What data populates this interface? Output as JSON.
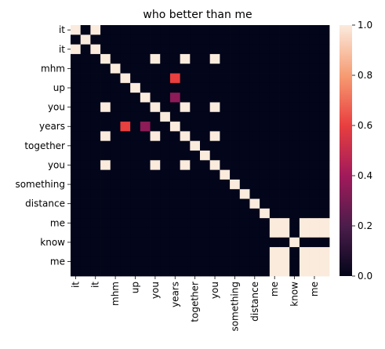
{
  "chart_data": {
    "type": "heatmap",
    "title": "who better than me",
    "xlabel": "",
    "ylabel": "",
    "rows": [
      "it",
      "",
      "it",
      "",
      "mhm",
      "",
      "up",
      "",
      "you",
      "",
      "years",
      "",
      "together",
      "",
      "you",
      "",
      "something",
      "",
      "distance",
      "",
      "me",
      "",
      "know",
      "",
      "me",
      ""
    ],
    "cols": [
      "it",
      "",
      "it",
      "",
      "mhm",
      "",
      "up",
      "",
      "you",
      "",
      "years",
      "",
      "together",
      "",
      "you",
      "",
      "something",
      "",
      "distance",
      "",
      "me",
      "",
      "know",
      "",
      "me",
      ""
    ],
    "tick_labels": [
      "it",
      "it",
      "mhm",
      "up",
      "you",
      "years",
      "together",
      "you",
      "something",
      "distance",
      "me",
      "know",
      "me"
    ],
    "highlights": [
      {
        "row": 0,
        "col": 0,
        "v": 1.0
      },
      {
        "row": 0,
        "col": 2,
        "v": 1.0
      },
      {
        "row": 1,
        "col": 1,
        "v": 1.0
      },
      {
        "row": 2,
        "col": 0,
        "v": 1.0
      },
      {
        "row": 2,
        "col": 2,
        "v": 1.0
      },
      {
        "row": 3,
        "col": 3,
        "v": 1.0
      },
      {
        "row": 3,
        "col": 8,
        "v": 1.0
      },
      {
        "row": 3,
        "col": 11,
        "v": 1.0
      },
      {
        "row": 3,
        "col": 14,
        "v": 1.0
      },
      {
        "row": 4,
        "col": 4,
        "v": 1.0
      },
      {
        "row": 5,
        "col": 5,
        "v": 1.0
      },
      {
        "row": 5,
        "col": 10,
        "v": 0.6
      },
      {
        "row": 6,
        "col": 6,
        "v": 1.0
      },
      {
        "row": 7,
        "col": 7,
        "v": 1.0
      },
      {
        "row": 7,
        "col": 10,
        "v": 0.35
      },
      {
        "row": 8,
        "col": 3,
        "v": 1.0
      },
      {
        "row": 8,
        "col": 8,
        "v": 1.0
      },
      {
        "row": 8,
        "col": 11,
        "v": 1.0
      },
      {
        "row": 8,
        "col": 14,
        "v": 1.0
      },
      {
        "row": 9,
        "col": 9,
        "v": 1.0
      },
      {
        "row": 10,
        "col": 5,
        "v": 0.6
      },
      {
        "row": 10,
        "col": 7,
        "v": 0.35
      },
      {
        "row": 10,
        "col": 10,
        "v": 1.0
      },
      {
        "row": 11,
        "col": 3,
        "v": 1.0
      },
      {
        "row": 11,
        "col": 8,
        "v": 1.0
      },
      {
        "row": 11,
        "col": 11,
        "v": 1.0
      },
      {
        "row": 11,
        "col": 14,
        "v": 1.0
      },
      {
        "row": 12,
        "col": 12,
        "v": 1.0
      },
      {
        "row": 13,
        "col": 13,
        "v": 1.0
      },
      {
        "row": 14,
        "col": 3,
        "v": 1.0
      },
      {
        "row": 14,
        "col": 8,
        "v": 1.0
      },
      {
        "row": 14,
        "col": 11,
        "v": 1.0
      },
      {
        "row": 14,
        "col": 14,
        "v": 1.0
      },
      {
        "row": 15,
        "col": 15,
        "v": 1.0
      },
      {
        "row": 16,
        "col": 16,
        "v": 1.0
      },
      {
        "row": 17,
        "col": 17,
        "v": 1.0
      },
      {
        "row": 18,
        "col": 18,
        "v": 1.0
      },
      {
        "row": 19,
        "col": 19,
        "v": 1.0
      }
    ],
    "block_me": {
      "rows": [
        20,
        21,
        22,
        23,
        24,
        25
      ],
      "cols": [
        20,
        21,
        22,
        23,
        24,
        25
      ],
      "gap_index": 22,
      "v": 1.0,
      "gap_diag_v": 1.0
    },
    "vmin": 0.0,
    "vmax": 1.0,
    "colorbar_ticks": [
      "0.0",
      "0.2",
      "0.4",
      "0.6",
      "0.8",
      "1.0"
    ],
    "colormap": "rocket",
    "colormap_stops": [
      "#03051a",
      "#4c1d4b",
      "#a11a5b",
      "#e83f3f",
      "#f69c73",
      "#faebdd"
    ]
  }
}
